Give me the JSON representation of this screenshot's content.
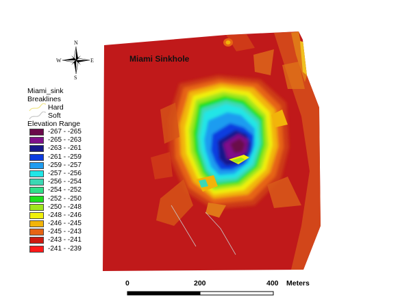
{
  "map_title": "Miami Sinkhole",
  "compass": {
    "n": "N",
    "s": "S",
    "e": "E",
    "w": "W"
  },
  "legend": {
    "layer": "Miami_sink",
    "breaklines_title": "Breaklines",
    "breaklines": [
      {
        "label": "Hard",
        "color": "#f0e68c"
      },
      {
        "label": "Soft",
        "color": "#c8c8c8"
      }
    ],
    "elevation_title": "Elevation Range",
    "elevation": [
      {
        "label": "-267 - -265",
        "color": "#6a0a4a"
      },
      {
        "label": "-265 - -263",
        "color": "#80108a"
      },
      {
        "label": "-263 - -261",
        "color": "#18188a"
      },
      {
        "label": "-261 - -259",
        "color": "#0c3ce0"
      },
      {
        "label": "-259 - -257",
        "color": "#1e9cf0"
      },
      {
        "label": "-257 - -256",
        "color": "#20e6e6"
      },
      {
        "label": "-256 - -254",
        "color": "#3cd8b4"
      },
      {
        "label": "-254 - -252",
        "color": "#30e08a"
      },
      {
        "label": "-252 - -250",
        "color": "#1ee01e"
      },
      {
        "label": "-250 - -248",
        "color": "#a0e61e"
      },
      {
        "label": "-248 - -246",
        "color": "#f0f00a"
      },
      {
        "label": "-246 - -245",
        "color": "#f2b40a"
      },
      {
        "label": "-245 - -243",
        "color": "#e66414"
      },
      {
        "label": "-243 - -241",
        "color": "#cd1a10"
      },
      {
        "label": "-241 - -239",
        "color": "#ff1a1a"
      }
    ]
  },
  "scale_bar": {
    "labels": [
      "0",
      "200",
      "400"
    ],
    "unit": "Meters"
  }
}
